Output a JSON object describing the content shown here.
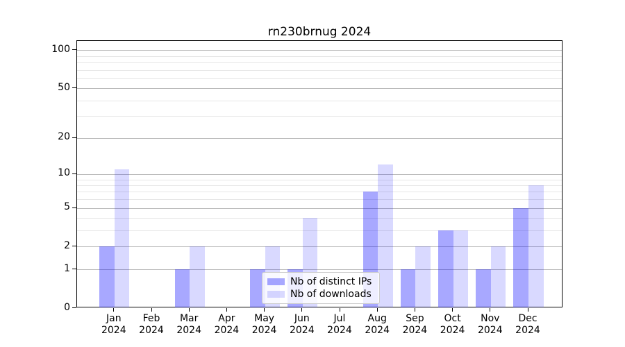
{
  "chart_data": {
    "type": "bar",
    "title": "rn230brnug 2024",
    "categories": [
      "Jan",
      "Feb",
      "Mar",
      "Apr",
      "May",
      "Jun",
      "Jul",
      "Aug",
      "Sep",
      "Oct",
      "Nov",
      "Dec"
    ],
    "year_label": "2024",
    "series": [
      {
        "name": "Nb of distinct IPs",
        "color": "rgba(0,0,255,0.34)",
        "values": [
          2,
          0,
          1,
          0,
          1,
          1,
          0,
          7,
          1,
          3,
          1,
          5
        ]
      },
      {
        "name": "Nb of downloads",
        "color": "rgba(0,0,255,0.15)",
        "values": [
          11,
          0,
          2,
          0,
          2,
          4,
          0,
          12,
          2,
          3,
          2,
          8
        ]
      }
    ],
    "yscale": "log1p",
    "ylim": [
      0,
      118
    ],
    "yticks": [
      0,
      1,
      2,
      5,
      10,
      20,
      50,
      100
    ],
    "yticks_minor": [
      3,
      4,
      6,
      7,
      8,
      9,
      30,
      40,
      60,
      70,
      80,
      90
    ],
    "grid": "horizontal",
    "legend_position": "lower center",
    "colors": {
      "axis": "#000000",
      "grid_major": "#b9b9b9",
      "grid_minor": "#e6e6e6",
      "legend_border": "#cccccc"
    }
  }
}
